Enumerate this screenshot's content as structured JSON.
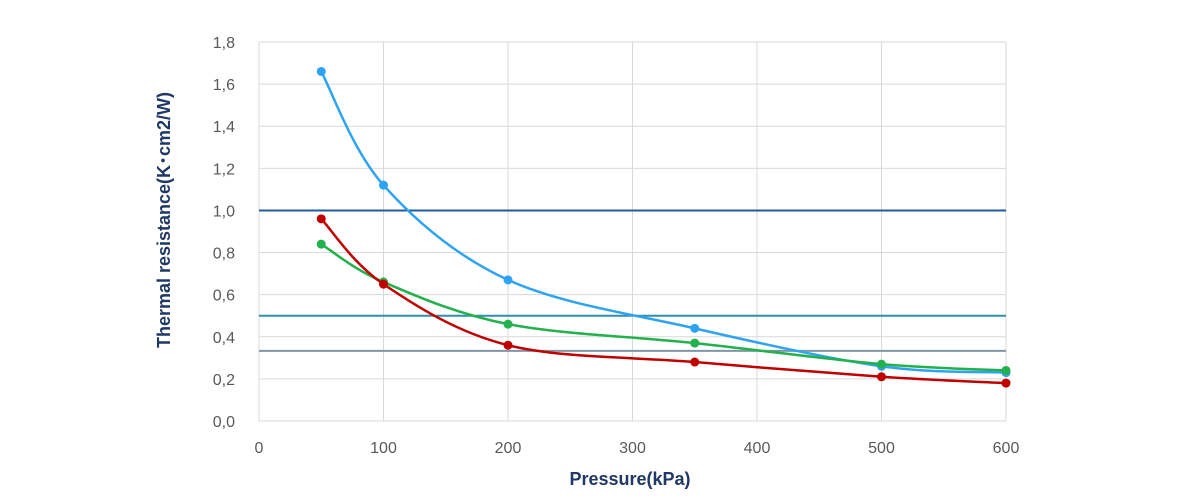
{
  "chart_data": {
    "type": "line",
    "title": "",
    "xlabel": "Pressure(kPa)",
    "ylabel": "Thermal resistance(K･cm2/W)",
    "xlim": [
      0,
      600
    ],
    "ylim": [
      0,
      1.8
    ],
    "x_ticks": [
      0,
      100,
      200,
      300,
      400,
      500,
      600
    ],
    "x_tick_labels": [
      "0",
      "100",
      "200",
      "300",
      "400",
      "500",
      "600"
    ],
    "y_ticks": [
      0,
      0.2,
      0.4,
      0.6,
      0.8,
      1.0,
      1.2,
      1.4,
      1.6,
      1.8
    ],
    "y_tick_labels": [
      "0,0",
      "0,2",
      "0,4",
      "0,6",
      "0,8",
      "1,0",
      "1,2",
      "1,4",
      "1,6",
      "1,8"
    ],
    "grid": true,
    "legend": "none",
    "reference_lines": [
      {
        "y": 1.0,
        "color": "#1f5c99"
      },
      {
        "y": 0.5,
        "color": "#2e8fb0"
      },
      {
        "y": 0.333,
        "color": "#7f96a8"
      }
    ],
    "series": [
      {
        "color": "#2ea3f2",
        "x": [
          50,
          100,
          200,
          350,
          500,
          600
        ],
        "y": [
          1.66,
          1.12,
          0.67,
          0.44,
          0.26,
          0.23
        ]
      },
      {
        "color": "#22b14c",
        "x": [
          50,
          100,
          200,
          350,
          500,
          600
        ],
        "y": [
          0.84,
          0.66,
          0.46,
          0.37,
          0.27,
          0.24
        ]
      },
      {
        "color": "#c00000",
        "x": [
          50,
          100,
          200,
          350,
          500,
          600
        ],
        "y": [
          0.96,
          0.65,
          0.36,
          0.28,
          0.21,
          0.18
        ]
      }
    ]
  }
}
